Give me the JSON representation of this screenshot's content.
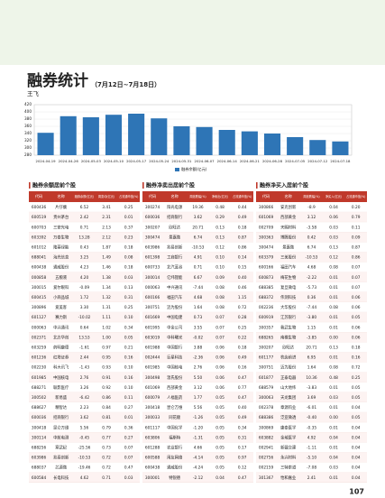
{
  "header": {
    "title": "融券统计",
    "date_range": "（7月12日~7月18日）",
    "author": "王飞"
  },
  "chart_data": {
    "type": "bar",
    "categories": [
      "2024-04-19",
      "2024-04-26",
      "2024-05-03",
      "2024-05-10",
      "2024-05-17",
      "2024-05-24",
      "2024-05-31",
      "2024-06-07",
      "2024-06-14",
      "2024-06-21",
      "2024-06-28",
      "2024-07-05",
      "2024-07-12",
      "2024-07-18"
    ],
    "series": [
      {
        "name": "融券余额(亿元)",
        "color": "#2e75b6",
        "values": [
          342,
          388,
          385,
          392,
          395,
          382,
          360,
          358,
          350,
          346,
          340,
          330,
          322,
          318
        ]
      }
    ],
    "ylim": [
      280,
      420
    ],
    "yticks": [
      280,
      300,
      320,
      340,
      360,
      380,
      400,
      420
    ],
    "grid": true
  },
  "tables": [
    {
      "title": "融券余额居前个股",
      "columns": [
        "代码",
        "名称",
        "融券余额(亿元)",
        "周变动(亿元)",
        "占流通市值(%)"
      ],
      "rows": [
        [
          "600436",
          "片仔癀",
          "6.52",
          "3.41",
          "0.25"
        ],
        [
          "600519",
          "贵州茅台",
          "2.42",
          "2.31",
          "0.01"
        ],
        [
          "600703",
          "三安光电",
          "0.71",
          "2.13",
          "0.37"
        ],
        [
          "603392",
          "万泰生物",
          "13.28",
          "2.12",
          "0.23"
        ],
        [
          "601012",
          "隆基绿能",
          "0.43",
          "1.87",
          "0.18"
        ],
        [
          "688041",
          "海光信息",
          "3.25",
          "1.49",
          "0.08"
        ],
        [
          "600438",
          "通威股份",
          "4.23",
          "1.46",
          "0.18"
        ],
        [
          "000858",
          "五粮液",
          "4.20",
          "1.38",
          "0.03"
        ],
        [
          "300015",
          "爱尔眼科",
          "-0.09",
          "1.34",
          "0.13"
        ],
        [
          "600415",
          "小商品城",
          "1.72",
          "1.32",
          "0.31"
        ],
        [
          "300896",
          "爱美客",
          "3.30",
          "1.31",
          "0.25"
        ],
        [
          "601127",
          "赛力斯",
          "-10.02",
          "1.11",
          "0.10"
        ],
        [
          "000063",
          "中兴通讯",
          "0.64",
          "1.02",
          "0.34"
        ],
        [
          "002371",
          "北方华创",
          "13.53",
          "1.00",
          "0.05"
        ],
        [
          "603259",
          "药明康德",
          "-1.61",
          "0.97",
          "0.21"
        ],
        [
          "601236",
          "红塔证券",
          "2.44",
          "0.95",
          "0.16"
        ],
        [
          "002230",
          "科大讯飞",
          "-1.43",
          "0.93",
          "0.10"
        ],
        [
          "601985",
          "中国核电",
          "2.76",
          "0.91",
          "0.16"
        ],
        [
          "688271",
          "联影医疗",
          "3.26",
          "0.92",
          "0.10"
        ],
        [
          "300502",
          "新易盛",
          "-6.42",
          "0.86",
          "0.11"
        ],
        [
          "688627",
          "精智达",
          "2.23",
          "0.84",
          "0.27"
        ],
        [
          "600036",
          "招商银行",
          "3.62",
          "0.81",
          "0.01"
        ],
        [
          "300418",
          "昆仑万维",
          "5.56",
          "0.79",
          "0.36"
        ],
        [
          "300114",
          "中航电测",
          "-0.45",
          "0.77",
          "0.27"
        ],
        [
          "688256",
          "寒武纪",
          "-25.56",
          "0.73",
          "0.07"
        ],
        [
          "603986",
          "兆易创新",
          "-10.53",
          "0.72",
          "0.07"
        ],
        [
          "688037",
          "芯源微",
          "-19.46",
          "0.72",
          "0.47"
        ],
        [
          "600584",
          "长电科技",
          "4.62",
          "0.71",
          "0.03"
        ]
      ]
    },
    {
      "title": "融券净卖出居前个股",
      "columns": [
        "代码",
        "名称",
        "周涨跌幅(%)",
        "净卖出(亿元)",
        "占流通市值(%)"
      ],
      "rows": [
        [
          "300274",
          "阳光电源",
          "19.36",
          "0.48",
          "0.44"
        ],
        [
          "600036",
          "招商银行",
          "3.62",
          "0.29",
          "0.49"
        ],
        [
          "300207",
          "欣旺达",
          "20.71",
          "0.13",
          "0.18"
        ],
        [
          "300474",
          "景嘉微",
          "6.74",
          "0.13",
          "0.87"
        ],
        [
          "603986",
          "兆易创新",
          "-10.53",
          "0.12",
          "0.86"
        ],
        [
          "601398",
          "工商银行",
          "4.91",
          "0.10",
          "0.14"
        ],
        [
          "600733",
          "北汽蓝谷",
          "0.71",
          "0.10",
          "0.15"
        ],
        [
          "300014",
          "亿纬锂能",
          "6.67",
          "0.09",
          "0.40"
        ],
        [
          "000063",
          "中兴通讯",
          "-7.44",
          "0.08",
          "0.46"
        ],
        [
          "600166",
          "福田汽车",
          "4.68",
          "0.08",
          "1.15"
        ],
        [
          "300751",
          "迈为股份",
          "1.64",
          "0.08",
          "0.72"
        ],
        [
          "601669",
          "中国电建",
          "0.73",
          "0.07",
          "0.28"
        ],
        [
          "601995",
          "中金公司",
          "3.55",
          "0.07",
          "0.25"
        ],
        [
          "603019",
          "中科曙光",
          "-0.02",
          "0.07",
          "0.22"
        ],
        [
          "601988",
          "中国银行",
          "3.88",
          "0.06",
          "0.18"
        ],
        [
          "002444",
          "巨星科技",
          "-2.36",
          "0.06",
          "0.49"
        ],
        [
          "601985",
          "中国核电",
          "2.76",
          "0.06",
          "0.16"
        ],
        [
          "300498",
          "温氏股份",
          "5.50",
          "0.06",
          "0.47"
        ],
        [
          "601069",
          "西部黄金",
          "3.12",
          "0.06",
          "0.77"
        ],
        [
          "600079",
          "人福医药",
          "1.77",
          "0.05",
          "0.47"
        ],
        [
          "300418",
          "昆仑万维",
          "5.56",
          "0.05",
          "0.40"
        ],
        [
          "300033",
          "同花顺",
          "-1.26",
          "0.05",
          "0.49"
        ],
        [
          "601117",
          "中国化学",
          "-1.20",
          "0.05",
          "0.34"
        ],
        [
          "603806",
          "福斯特",
          "-1.31",
          "0.05",
          "0.31"
        ],
        [
          "601288",
          "农业银行",
          "4.66",
          "0.05",
          "0.17"
        ],
        [
          "600588",
          "用友网络",
          "-4.14",
          "0.05",
          "0.97"
        ],
        [
          "600438",
          "通威股份",
          "-4.24",
          "0.05",
          "0.12"
        ],
        [
          "300001",
          "特锐德",
          "-2.12",
          "0.04",
          "0.47"
        ]
      ]
    },
    {
      "title": "融券净买入居前个股",
      "columns": [
        "代码",
        "名称",
        "周涨跌幅(%)",
        "净买入(亿元)",
        "占流通市值(%)"
      ],
      "rows": [
        [
          "300866",
          "安克创新",
          "-8.9",
          "0.04",
          "0.20"
        ],
        [
          "601069",
          "西部黄金",
          "3.12",
          "0.06",
          "0.79"
        ],
        [
          "002709",
          "天赐材料",
          "-3.58",
          "0.03",
          "0.11"
        ],
        [
          "300363",
          "博腾股份",
          "0.42",
          "0.03",
          "0.09"
        ],
        [
          "300474",
          "景嘉微",
          "6.74",
          "0.13",
          "0.87"
        ],
        [
          "603379",
          "三美股份",
          "-10.53",
          "0.12",
          "0.86"
        ],
        [
          "600166",
          "福田汽车",
          "4.68",
          "0.08",
          "0.07"
        ],
        [
          "600873",
          "梅花生物",
          "-2.22",
          "0.01",
          "0.07"
        ],
        [
          "688385",
          "复旦微电",
          "-5.73",
          "0.01",
          "0.07"
        ],
        [
          "688372",
          "伟测科技",
          "0.36",
          "0.01",
          "0.06"
        ],
        [
          "002236",
          "大华股份",
          "-7.44",
          "0.08",
          "0.06"
        ],
        [
          "600919",
          "江苏银行",
          "-3.80",
          "0.01",
          "0.05"
        ],
        [
          "300357",
          "我武生物",
          "1.15",
          "0.01",
          "0.06"
        ],
        [
          "688265",
          "南模生物",
          "-3.85",
          "0.00",
          "0.06"
        ],
        [
          "300207",
          "欣旺达",
          "20.71",
          "0.13",
          "0.18"
        ],
        [
          "601177",
          "杭齿前进",
          "6.95",
          "0.01",
          "0.16"
        ],
        [
          "300751",
          "迈为股份",
          "1.64",
          "0.08",
          "0.72"
        ],
        [
          "601877",
          "正泰电器",
          "10.36",
          "0.48",
          "0.25"
        ],
        [
          "688579",
          "山大地纬",
          "-3.83",
          "0.01",
          "0.05"
        ],
        [
          "300063",
          "天龙集团",
          "3.69",
          "0.03",
          "0.05"
        ],
        [
          "002378",
          "章源钨业",
          "-6.01",
          "0.01",
          "0.04"
        ],
        [
          "688386",
          "泛亚微透",
          "-0.40",
          "0.00",
          "0.05"
        ],
        [
          "300869",
          "康泰医学",
          "-0.35",
          "0.01",
          "0.04"
        ],
        [
          "603882",
          "金域医学",
          "4.92",
          "0.04",
          "0.04"
        ],
        [
          "002941",
          "新疆交建",
          "-1.11",
          "0.01",
          "0.04"
        ],
        [
          "002756",
          "永兴材料",
          "-5.10",
          "0.04",
          "0.04"
        ],
        [
          "002159",
          "三特索道",
          "-7.08",
          "0.03",
          "0.04"
        ],
        [
          "301367",
          "怡和嘉业",
          "2.41",
          "0.01",
          "0.04"
        ]
      ]
    }
  ],
  "page_number": "107"
}
